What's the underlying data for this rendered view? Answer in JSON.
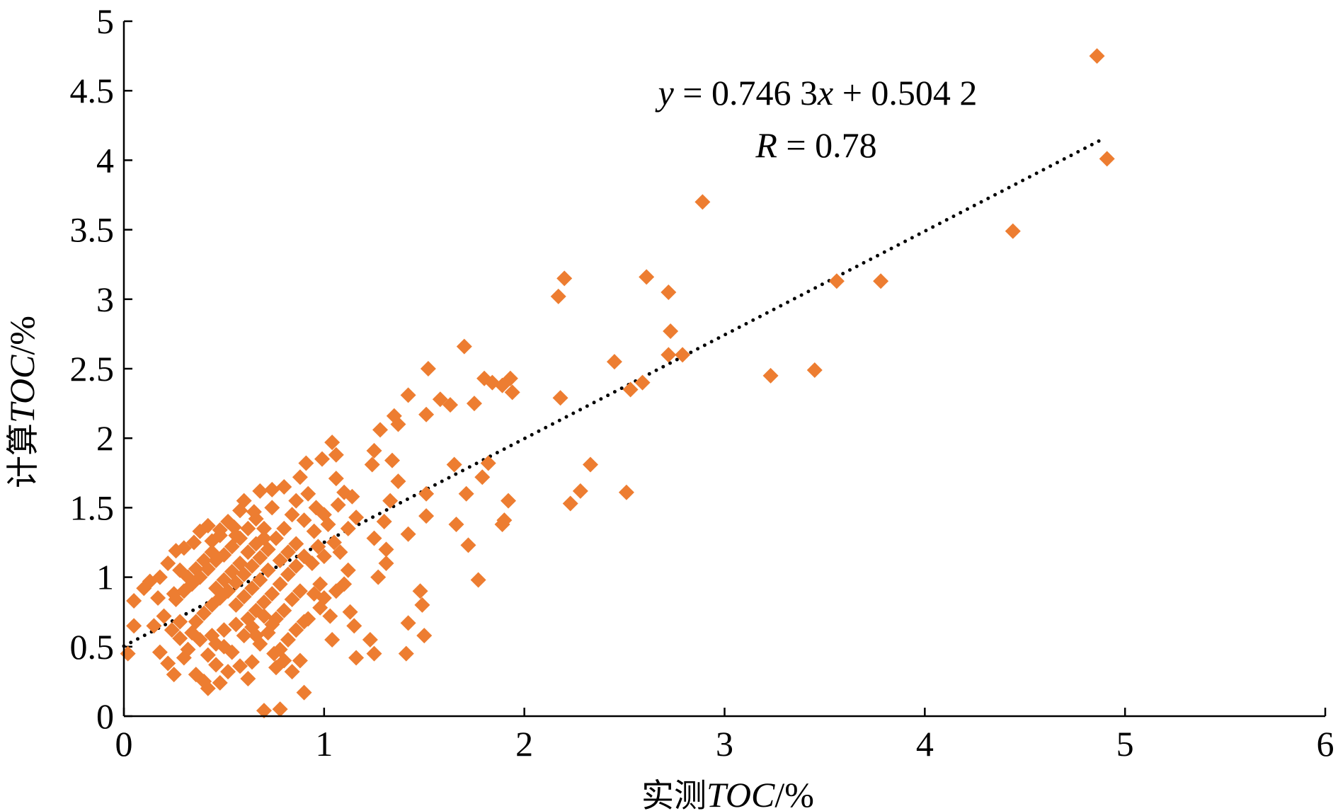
{
  "chart_data": {
    "type": "scatter",
    "xlabel_prefix": "实测",
    "xlabel_var": "TOC",
    "xlabel_suffix": "/%",
    "ylabel_prefix": "计算",
    "ylabel_var": "TOC",
    "ylabel_suffix": "/%",
    "xlim": [
      0,
      6
    ],
    "ylim": [
      0,
      5
    ],
    "x_ticks": [
      "0",
      "1",
      "2",
      "3",
      "4",
      "5",
      "6"
    ],
    "y_ticks": [
      "0",
      "0.5",
      "1",
      "1.5",
      "2",
      "2.5",
      "3",
      "3.5",
      "4",
      "4.5",
      "5"
    ],
    "grid": false,
    "marker": "diamond",
    "point_color": "#ED7D31",
    "trendline": {
      "slope": 0.7463,
      "intercept": 0.5042,
      "style": "dotted",
      "color": "#000000",
      "x_range": [
        0,
        4.9
      ]
    },
    "equation": {
      "y_var": "y",
      "rhs_a": " = 0.746 3",
      "x_var": "x",
      "rhs_b": " + 0.504 2"
    },
    "r_text": {
      "var": "R",
      "rhs": " = 0.78"
    },
    "points": [
      [
        4.86,
        4.75
      ],
      [
        4.91,
        4.01
      ],
      [
        4.44,
        3.49
      ],
      [
        3.78,
        3.13
      ],
      [
        3.56,
        3.13
      ],
      [
        3.45,
        2.49
      ],
      [
        3.23,
        2.45
      ],
      [
        2.89,
        3.7
      ],
      [
        2.72,
        3.05
      ],
      [
        2.61,
        3.16
      ],
      [
        2.73,
        2.77
      ],
      [
        2.72,
        2.6
      ],
      [
        2.79,
        2.6
      ],
      [
        2.59,
        2.4
      ],
      [
        2.53,
        2.35
      ],
      [
        2.45,
        2.55
      ],
      [
        2.51,
        1.61
      ],
      [
        2.33,
        1.81
      ],
      [
        2.28,
        1.62
      ],
      [
        2.23,
        1.53
      ],
      [
        2.2,
        3.15
      ],
      [
        2.17,
        3.02
      ],
      [
        2.18,
        2.29
      ],
      [
        1.7,
        2.66
      ],
      [
        1.8,
        2.43
      ],
      [
        1.84,
        2.4
      ],
      [
        1.89,
        2.38
      ],
      [
        1.93,
        2.43
      ],
      [
        1.94,
        2.33
      ],
      [
        1.75,
        2.25
      ],
      [
        1.63,
        2.24
      ],
      [
        1.58,
        2.28
      ],
      [
        1.52,
        2.5
      ],
      [
        1.42,
        2.31
      ],
      [
        1.51,
        2.17
      ],
      [
        1.35,
        2.16
      ],
      [
        1.37,
        2.1
      ],
      [
        1.28,
        2.06
      ],
      [
        1.65,
        1.81
      ],
      [
        1.82,
        1.82
      ],
      [
        1.79,
        1.72
      ],
      [
        1.71,
        1.6
      ],
      [
        1.92,
        1.55
      ],
      [
        1.89,
        1.38
      ],
      [
        1.9,
        1.41
      ],
      [
        1.66,
        1.38
      ],
      [
        1.72,
        1.23
      ],
      [
        1.77,
        0.98
      ],
      [
        1.51,
        1.6
      ],
      [
        1.51,
        1.44
      ],
      [
        1.42,
        1.31
      ],
      [
        1.33,
        1.55
      ],
      [
        1.37,
        1.69
      ],
      [
        1.34,
        1.84
      ],
      [
        1.25,
        1.91
      ],
      [
        1.24,
        1.81
      ],
      [
        1.3,
        1.4
      ],
      [
        1.25,
        1.28
      ],
      [
        1.31,
        1.2
      ],
      [
        1.31,
        1.1
      ],
      [
        1.27,
        1.0
      ],
      [
        1.48,
        0.9
      ],
      [
        1.49,
        0.8
      ],
      [
        1.5,
        0.58
      ],
      [
        1.42,
        0.67
      ],
      [
        1.41,
        0.45
      ],
      [
        1.23,
        0.55
      ],
      [
        1.25,
        0.45
      ],
      [
        1.16,
        0.42
      ],
      [
        1.13,
        0.75
      ],
      [
        1.15,
        0.65
      ],
      [
        1.04,
        0.55
      ],
      [
        1.03,
        0.72
      ],
      [
        0.98,
        0.78
      ],
      [
        1.06,
        1.88
      ],
      [
        1.04,
        1.97
      ],
      [
        0.99,
        1.85
      ],
      [
        0.91,
        1.82
      ],
      [
        1.06,
        1.71
      ],
      [
        1.1,
        1.61
      ],
      [
        1.14,
        1.58
      ],
      [
        1.07,
        1.52
      ],
      [
        1.16,
        1.43
      ],
      [
        1.12,
        1.35
      ],
      [
        1.05,
        1.25
      ],
      [
        1.12,
        1.05
      ],
      [
        0.88,
        1.72
      ],
      [
        0.92,
        1.6
      ],
      [
        0.86,
        1.55
      ],
      [
        0.8,
        1.65
      ],
      [
        0.74,
        1.63
      ],
      [
        0.68,
        1.62
      ],
      [
        0.74,
        1.5
      ],
      [
        0.65,
        1.47
      ],
      [
        0.58,
        1.48
      ],
      [
        0.55,
        1.36
      ],
      [
        0.48,
        1.3
      ],
      [
        0.42,
        1.37
      ],
      [
        0.38,
        1.33
      ],
      [
        0.35,
        1.25
      ],
      [
        0.3,
        1.21
      ],
      [
        0.26,
        1.19
      ],
      [
        0.22,
        1.1
      ],
      [
        0.28,
        1.05
      ],
      [
        0.18,
        1.0
      ],
      [
        0.13,
        0.97
      ],
      [
        0.1,
        0.92
      ],
      [
        0.17,
        0.85
      ],
      [
        0.05,
        0.83
      ],
      [
        0.25,
        0.88
      ],
      [
        0.2,
        0.72
      ],
      [
        0.15,
        0.65
      ],
      [
        0.28,
        0.68
      ],
      [
        0.05,
        0.65
      ],
      [
        0.02,
        0.45
      ],
      [
        0.18,
        0.46
      ],
      [
        0.22,
        0.38
      ],
      [
        0.25,
        0.3
      ],
      [
        0.3,
        0.42
      ],
      [
        0.36,
        0.3
      ],
      [
        0.4,
        0.25
      ],
      [
        0.42,
        0.2
      ],
      [
        0.48,
        0.24
      ],
      [
        0.46,
        0.37
      ],
      [
        0.52,
        0.32
      ],
      [
        0.58,
        0.36
      ],
      [
        0.62,
        0.27
      ],
      [
        0.64,
        0.39
      ],
      [
        0.7,
        0.04
      ],
      [
        0.78,
        0.05
      ],
      [
        0.9,
        0.17
      ],
      [
        0.84,
        0.32
      ],
      [
        0.88,
        0.4
      ],
      [
        0.75,
        0.45
      ],
      [
        0.82,
        0.55
      ],
      [
        0.9,
        0.68
      ],
      [
        0.95,
        0.88
      ],
      [
        0.98,
        0.95
      ],
      [
        0.94,
        1.1
      ],
      [
        0.97,
        1.22
      ],
      [
        0.95,
        1.33
      ],
      [
        0.9,
        1.41
      ],
      [
        0.84,
        1.45
      ],
      [
        0.8,
        1.35
      ],
      [
        0.76,
        1.28
      ],
      [
        0.72,
        1.2
      ],
      [
        0.68,
        1.14
      ],
      [
        0.64,
        1.08
      ],
      [
        0.6,
        1.02
      ],
      [
        0.56,
        0.96
      ],
      [
        0.52,
        0.9
      ],
      [
        0.48,
        0.85
      ],
      [
        0.44,
        0.8
      ],
      [
        0.4,
        0.74
      ],
      [
        0.36,
        0.68
      ],
      [
        0.34,
        0.6
      ],
      [
        0.38,
        0.55
      ],
      [
        0.44,
        0.58
      ],
      [
        0.5,
        0.62
      ],
      [
        0.56,
        0.66
      ],
      [
        0.62,
        0.7
      ],
      [
        0.66,
        0.76
      ],
      [
        0.7,
        0.82
      ],
      [
        0.74,
        0.88
      ],
      [
        0.78,
        0.95
      ],
      [
        0.82,
        1.02
      ],
      [
        0.86,
        1.08
      ],
      [
        0.9,
        1.15
      ],
      [
        0.62,
        1.35
      ],
      [
        0.58,
        1.28
      ],
      [
        0.54,
        1.22
      ],
      [
        0.5,
        1.16
      ],
      [
        0.46,
        1.12
      ],
      [
        0.42,
        1.06
      ],
      [
        0.38,
        1.0
      ],
      [
        0.34,
        0.95
      ],
      [
        0.3,
        0.9
      ],
      [
        0.26,
        0.84
      ],
      [
        0.6,
        1.55
      ],
      [
        0.66,
        1.42
      ],
      [
        0.7,
        1.35
      ],
      [
        0.72,
        1.05
      ],
      [
        0.68,
        0.98
      ],
      [
        0.64,
        0.92
      ],
      [
        0.6,
        0.86
      ],
      [
        0.56,
        0.8
      ],
      [
        0.6,
        0.58
      ],
      [
        0.64,
        0.64
      ],
      [
        0.68,
        0.52
      ],
      [
        0.72,
        0.6
      ],
      [
        0.76,
        0.7
      ],
      [
        0.8,
        0.76
      ],
      [
        0.84,
        0.84
      ],
      [
        0.88,
        0.9
      ],
      [
        0.78,
        1.12
      ],
      [
        0.82,
        1.18
      ],
      [
        0.86,
        1.24
      ],
      [
        0.74,
        0.66
      ],
      [
        0.7,
        0.72
      ],
      [
        0.66,
        0.58
      ],
      [
        0.58,
        1.1
      ],
      [
        0.54,
        1.04
      ],
      [
        0.5,
        0.98
      ],
      [
        0.46,
        0.92
      ],
      [
        0.44,
        1.18
      ],
      [
        0.4,
        1.12
      ],
      [
        0.36,
        1.06
      ],
      [
        0.32,
        1.0
      ],
      [
        0.52,
        1.4
      ],
      [
        0.48,
        1.34
      ],
      [
        0.44,
        1.26
      ],
      [
        0.62,
        1.18
      ],
      [
        0.66,
        1.24
      ],
      [
        0.7,
        1.28
      ],
      [
        0.56,
        1.3
      ],
      [
        0.5,
        0.5
      ],
      [
        0.54,
        0.46
      ],
      [
        0.46,
        0.52
      ],
      [
        0.42,
        0.44
      ],
      [
        0.32,
        0.48
      ],
      [
        0.28,
        0.56
      ],
      [
        0.24,
        0.62
      ],
      [
        0.96,
        1.5
      ],
      [
        1.0,
        1.45
      ],
      [
        1.02,
        1.38
      ],
      [
        1.0,
        1.15
      ],
      [
        1.08,
        1.18
      ],
      [
        1.1,
        0.95
      ],
      [
        1.0,
        0.85
      ],
      [
        1.06,
        0.9
      ],
      [
        0.92,
        0.7
      ],
      [
        0.86,
        0.62
      ],
      [
        0.78,
        0.48
      ],
      [
        0.8,
        0.4
      ],
      [
        0.76,
        0.35
      ]
    ]
  }
}
